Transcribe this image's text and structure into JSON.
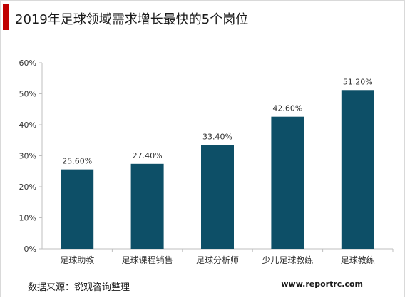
{
  "header": {
    "title": "2019年足球领域需求增长最快的5个岗位"
  },
  "footer": {
    "source": "数据来源：锐观咨询整理",
    "website": "www.reportrc.com"
  },
  "colors": {
    "accent": "#c00000",
    "bar": "#0d4f67",
    "axis": "#bfbfbf",
    "text": "#333333"
  },
  "chart_data": {
    "type": "bar",
    "title": "",
    "xlabel": "",
    "ylabel": "",
    "categories": [
      "足球助教",
      "足球课程销售",
      "足球分析师",
      "少儿足球教练",
      "足球教练"
    ],
    "values": [
      25.6,
      27.4,
      33.4,
      42.6,
      51.2
    ],
    "value_labels": [
      "25.60%",
      "27.40%",
      "33.40%",
      "42.60%",
      "51.20%"
    ],
    "ylim": [
      0,
      60
    ],
    "yticks": [
      0,
      10,
      20,
      30,
      40,
      50,
      60
    ],
    "ytick_labels": [
      "0%",
      "10%",
      "20%",
      "30%",
      "40%",
      "50%",
      "60%"
    ],
    "grid": false,
    "legend": "none"
  }
}
